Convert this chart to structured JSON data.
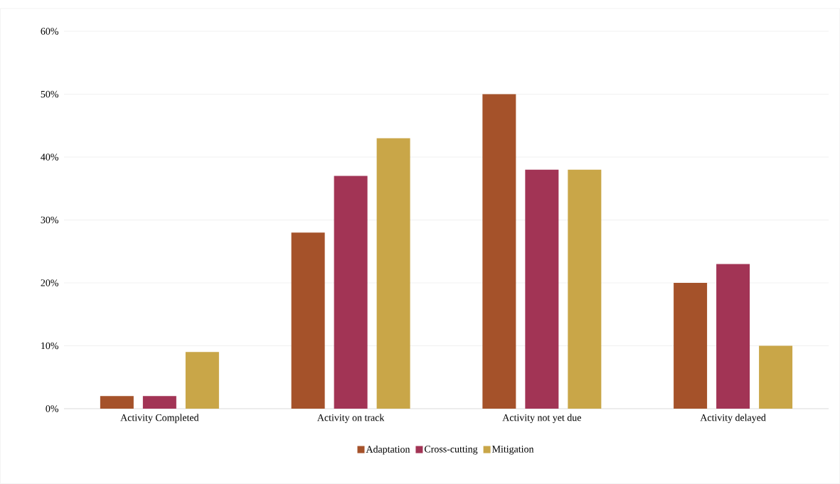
{
  "chart_data": {
    "type": "bar",
    "categories": [
      "Activity Completed",
      "Activity on track",
      "Activity not yet due",
      "Activity delayed"
    ],
    "series": [
      {
        "name": "Adaptation",
        "color": "#a5522a",
        "values": [
          2,
          28,
          50,
          20
        ]
      },
      {
        "name": "Cross-cutting",
        "color": "#a23455",
        "values": [
          2,
          37,
          38,
          23
        ]
      },
      {
        "name": "Mitigation",
        "color": "#c9a648",
        "values": [
          9,
          43,
          38,
          10
        ]
      }
    ],
    "ylim": [
      0,
      60
    ],
    "yticks": [
      {
        "value": 0,
        "label": "0%"
      },
      {
        "value": 10,
        "label": "10%"
      },
      {
        "value": 20,
        "label": "20%"
      },
      {
        "value": 30,
        "label": "30%"
      },
      {
        "value": 40,
        "label": "40%"
      },
      {
        "value": 50,
        "label": "50%"
      },
      {
        "value": 60,
        "label": "60%"
      }
    ],
    "grid": "y",
    "legend": "bottom"
  }
}
